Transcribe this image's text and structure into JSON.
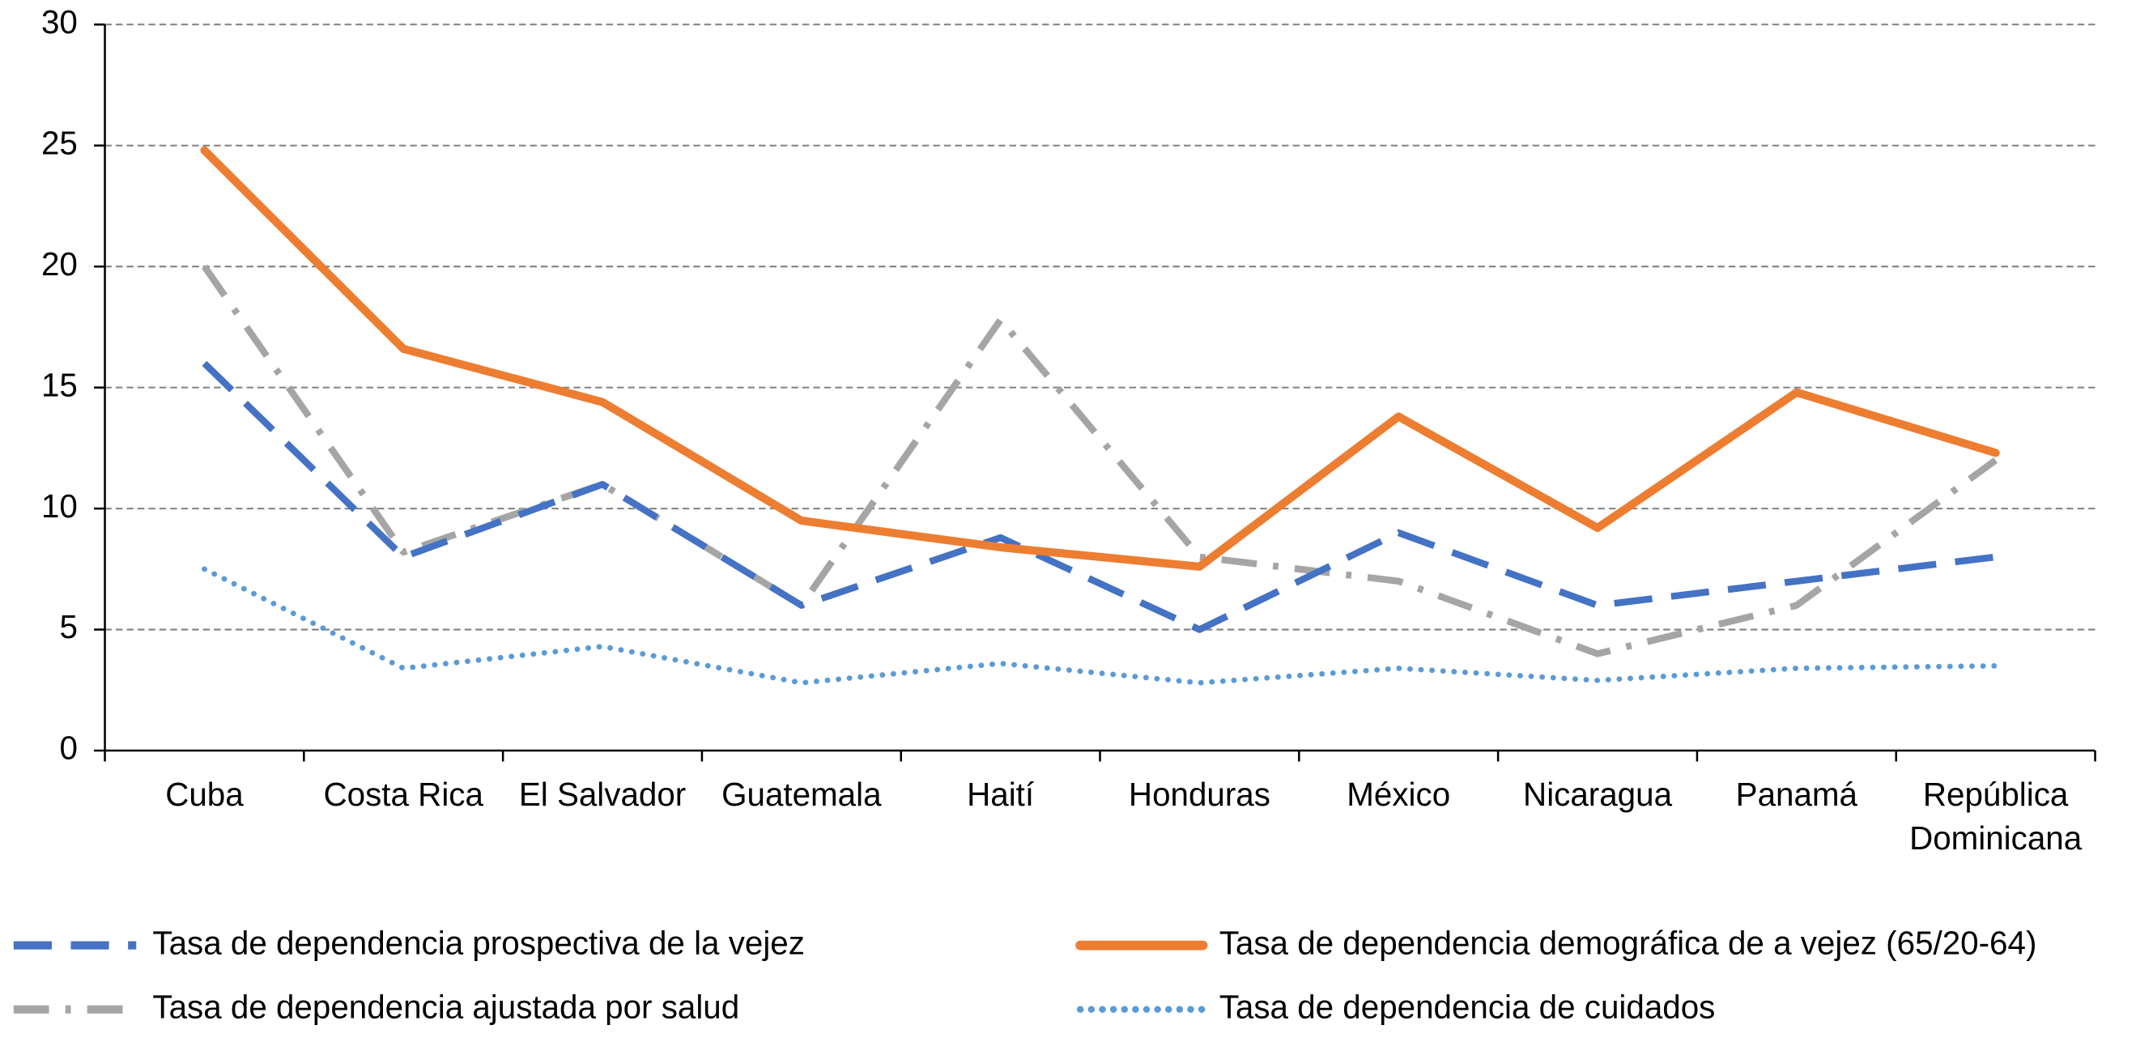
{
  "chart_data": {
    "type": "line",
    "categories": [
      "Cuba",
      "Costa Rica",
      "El Salvador",
      "Guatemala",
      "Haití",
      "Honduras",
      "México",
      "Nicaragua",
      "Panamá",
      "República Dominicana"
    ],
    "series": [
      {
        "name": "Tasa de dependencia prospectiva de la vejez",
        "color": "#4472c4",
        "style": "dashed",
        "values": [
          16,
          8,
          11,
          6,
          8.8,
          5,
          9,
          6,
          7,
          8
        ]
      },
      {
        "name": "Tasa de dependencia demográfica de a vejez (65/20-64)",
        "color": "#ed7d31",
        "style": "solid",
        "values": [
          24.8,
          16.6,
          14.4,
          9.5,
          8.4,
          7.6,
          13.8,
          9.2,
          14.8,
          12.3
        ]
      },
      {
        "name": "Tasa de dependencia ajustada por salud",
        "color": "#a5a5a5",
        "style": "dashdot",
        "values": [
          20,
          8.2,
          11,
          6,
          17.8,
          8,
          7,
          4,
          6,
          12
        ]
      },
      {
        "name": "Tasa de dependencia de cuidados",
        "color": "#5b9bd5",
        "style": "dotted",
        "values": [
          7.5,
          3.4,
          4.3,
          2.8,
          3.6,
          2.8,
          3.4,
          2.9,
          3.4,
          3.5
        ]
      }
    ],
    "ylim": [
      0,
      30
    ],
    "yticks": [
      0,
      5,
      10,
      15,
      20,
      25,
      30
    ],
    "grid": true,
    "legend": "bottom"
  }
}
